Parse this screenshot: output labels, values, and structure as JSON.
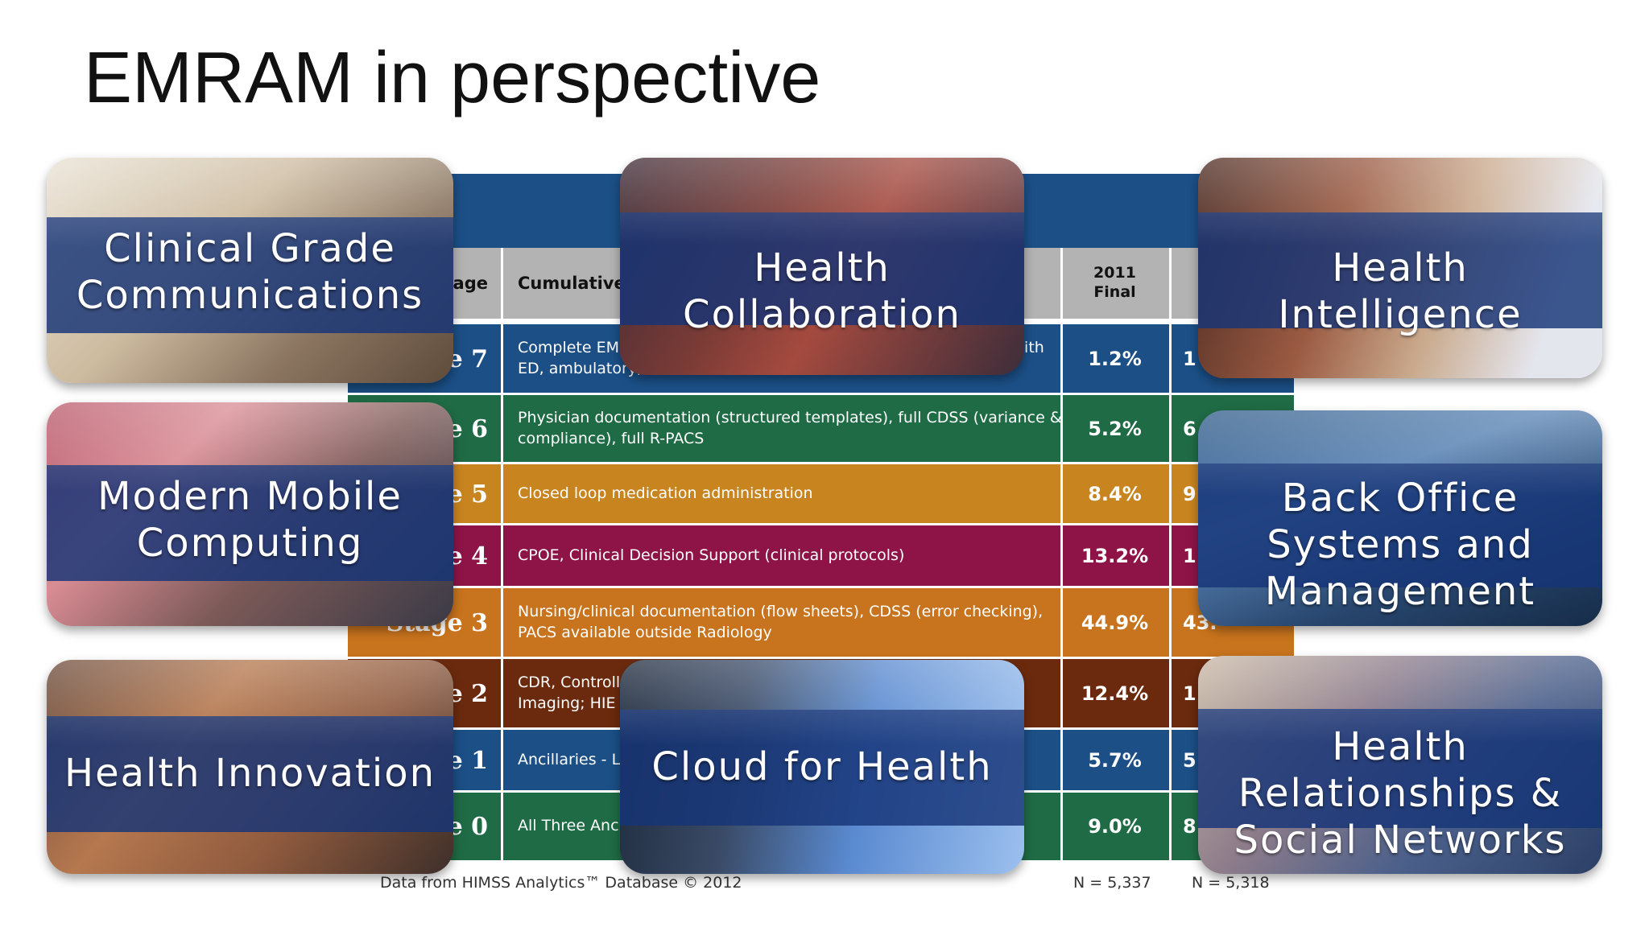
{
  "slide": {
    "title": "EMRAM in perspective"
  },
  "table": {
    "headers": {
      "stage": "Stage",
      "cumulative": "Cumulative",
      "y2011_line1": "2011",
      "y2011_line2": "Final"
    },
    "rows": [
      {
        "stage": "Stage 7",
        "cumulative": "Complete EMR; CCD transactions to share data; Data continuity with ED, ambulatory, OP",
        "y2011": "1.2%",
        "y2012": "1",
        "color": "#1b4f86"
      },
      {
        "stage": "Stage 6",
        "cumulative": "Physician documentation (structured templates), full CDSS (variance & compliance), full R-PACS",
        "y2011": "5.2%",
        "y2012": "6",
        "color": "#1f6b45"
      },
      {
        "stage": "Stage 5",
        "cumulative": "Closed loop medication administration",
        "y2011": "8.4%",
        "y2012": "9",
        "color": "#c8841f"
      },
      {
        "stage": "Stage 4",
        "cumulative": "CPOE, Clinical Decision Support (clinical protocols)",
        "y2011": "13.2%",
        "y2012": "1",
        "color": "#8e1447"
      },
      {
        "stage": "Stage 3",
        "cumulative": "Nursing/clinical documentation (flow sheets), CDSS (error checking), PACS available outside Radiology",
        "y2011": "44.9%",
        "y2012": "43.",
        "color": "#c8731d"
      },
      {
        "stage": "Stage 2",
        "cumulative": "CDR, Controlled Medical Vocabulary, CDS, may have Document Imaging; HIE capable",
        "y2011": "12.4%",
        "y2012": "1",
        "color": "#6b2a0e"
      },
      {
        "stage": "Stage 1",
        "cumulative": "Ancillaries - Lab, Rad, Pharmacy - All Installed",
        "y2011": "5.7%",
        "y2012": "5",
        "color": "#1b4f86"
      },
      {
        "stage": "Stage 0",
        "cumulative": "All Three Ancillaries Not Installed",
        "y2011": "9.0%",
        "y2012": "8",
        "color": "#1f6b45"
      }
    ],
    "footer": {
      "source": "Data from HIMSS Analytics™ Database © 2012",
      "n2011": "N = 5,337",
      "n2012": "N = 5,318"
    }
  },
  "tiles": [
    {
      "label_line1": "Clinical Grade",
      "label_line2": "Communications",
      "label_line3": ""
    },
    {
      "label_line1": "Health",
      "label_line2": "Collaboration",
      "label_line3": ""
    },
    {
      "label_line1": "Health",
      "label_line2": "Intelligence",
      "label_line3": ""
    },
    {
      "label_line1": "Modern Mobile",
      "label_line2": "Computing",
      "label_line3": ""
    },
    {
      "label_line1": "Back Office",
      "label_line2": "Systems and",
      "label_line3": "Management"
    },
    {
      "label_line1": "Health Innovation",
      "label_line2": "",
      "label_line3": ""
    },
    {
      "label_line1": "Cloud for Health",
      "label_line2": "",
      "label_line3": ""
    },
    {
      "label_line1": "Health",
      "label_line2": "Relationships &",
      "label_line3": "Social Networks"
    }
  ],
  "colors": {
    "title": "#111111",
    "band": "#163478",
    "tableHeader": "#1b4f86"
  }
}
